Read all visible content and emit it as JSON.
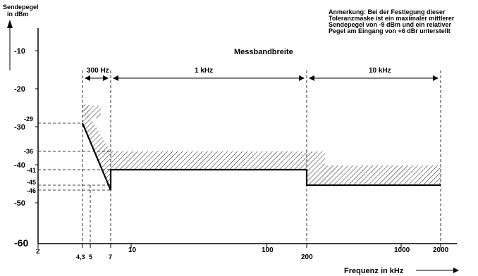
{
  "y_axis": {
    "title_line1": "Sendepegel",
    "title_line2": "in dBm",
    "ticks": [
      {
        "label": "-10",
        "value": -10
      },
      {
        "label": "-20",
        "value": -20
      },
      {
        "label": "-30",
        "value": -30
      },
      {
        "label": "-40",
        "value": -40
      },
      {
        "label": "-50",
        "value": -50
      },
      {
        "label": "-60",
        "value": -60
      }
    ],
    "markers": [
      {
        "label": "-29",
        "value": -29
      },
      {
        "label": "-36",
        "value": -36
      },
      {
        "label": "-41",
        "value": -41
      },
      {
        "label": "-45",
        "value": -45
      },
      {
        "label": "-46",
        "value": -46
      }
    ]
  },
  "x_axis": {
    "title": "Frequenz in kHz",
    "ticks": [
      "2",
      "4,3",
      "5",
      "7",
      "10",
      "100",
      "200",
      "1000",
      "2000"
    ]
  },
  "annotation": {
    "line1": "Anmerkung: Bei der Festlegung dieser",
    "line2": "Toleranzmaske ist ein maximaler mittlerer",
    "line3": "Sendepegel von -9 dBm und ein relativer",
    "line4": "Pegel am Eingang  von +6 dBr unterstellt"
  },
  "bandwidth": {
    "title": "Messbandbreite",
    "seg1": "300 Hz",
    "seg2": "1 kHz",
    "seg3": "10 kHz"
  }
}
